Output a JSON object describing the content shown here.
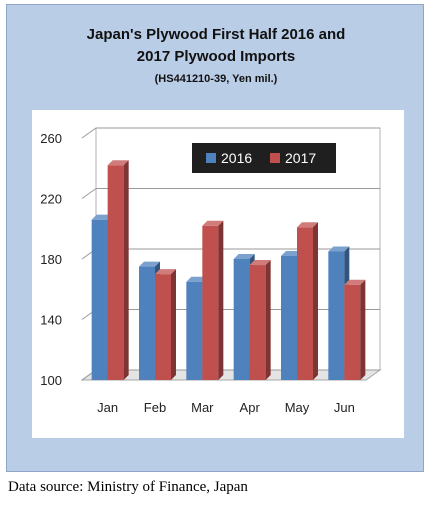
{
  "chart_data": {
    "type": "bar",
    "title_lines": [
      "Japan's Plywood First Half 2016 and",
      "2017 Plywood Imports"
    ],
    "subtitle": "(HS441210-39, Yen mil.)",
    "categories": [
      "Jan",
      "Feb",
      "Mar",
      "Apr",
      "May",
      "Jun"
    ],
    "series": [
      {
        "name": "2016",
        "values": [
          206,
          175,
          165,
          180,
          182,
          185
        ],
        "color": "#4f81bd"
      },
      {
        "name": "2017",
        "values": [
          242,
          170,
          202,
          176,
          201,
          163
        ],
        "color": "#c0504d"
      }
    ],
    "ylim": [
      100,
      260
    ],
    "yticks": [
      "100",
      "140",
      "180",
      "220",
      "260"
    ],
    "grid": true,
    "legend_position": "top-right"
  },
  "footer": "Data source: Ministry of Finance, Japan"
}
